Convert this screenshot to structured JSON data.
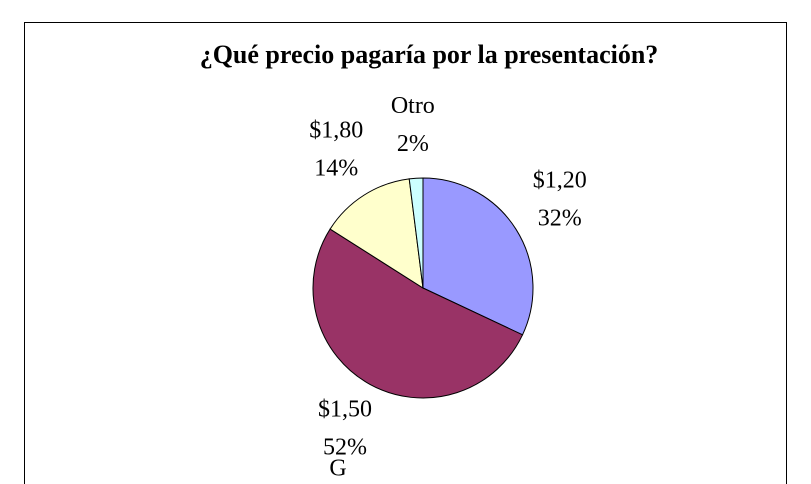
{
  "chart_data": {
    "type": "pie",
    "title": "¿Qué precio pagaría por la presentación?",
    "categories": [
      "$1,20",
      "$1,50",
      "$1,80",
      "Otro"
    ],
    "values": [
      32,
      52,
      14,
      2
    ],
    "value_labels": [
      "32%",
      "52%",
      "14%",
      "2%"
    ],
    "colors": [
      "#9999ff",
      "#993366",
      "#ffffcc",
      "#ccffff"
    ],
    "annotation": "G"
  }
}
